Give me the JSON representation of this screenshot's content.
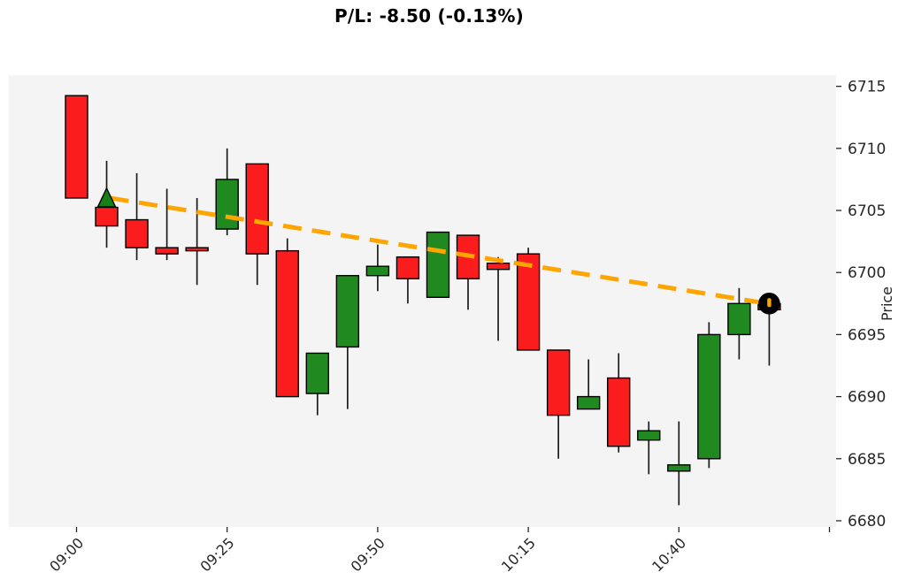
{
  "title": "P/L: -8.50 (-0.13%)",
  "chart_data": {
    "type": "candlestick",
    "title": "P/L: -8.50 (-0.13%)",
    "ylabel": "Price",
    "xlabel": "",
    "grid": false,
    "ylim": [
      6679.5,
      6715.9
    ],
    "y_ticks": [
      6680,
      6685,
      6690,
      6695,
      6700,
      6705,
      6710,
      6715
    ],
    "x_ticks": [
      {
        "index": 0,
        "label": "09:00"
      },
      {
        "index": 5,
        "label": "09:25"
      },
      {
        "index": 10,
        "label": "09:50"
      },
      {
        "index": 15,
        "label": "10:15"
      },
      {
        "index": 20,
        "label": "10:40"
      },
      {
        "index": 25,
        "label": ""
      }
    ],
    "columns": [
      "time",
      "open",
      "high",
      "low",
      "close"
    ],
    "candles": [
      [
        "09:00",
        6714.25,
        6714.25,
        6706.0,
        6706.0
      ],
      [
        "09:05",
        6705.25,
        6709.0,
        6702.0,
        6703.75
      ],
      [
        "09:10",
        6704.25,
        6708.0,
        6701.0,
        6702.0
      ],
      [
        "09:15",
        6702.0,
        6706.75,
        6701.0,
        6701.5
      ],
      [
        "09:20",
        6702.0,
        6706.0,
        6699.0,
        6701.75
      ],
      [
        "09:25",
        6703.5,
        6710.0,
        6703.0,
        6707.5
      ],
      [
        "09:30",
        6708.75,
        6708.75,
        6699.0,
        6701.5
      ],
      [
        "09:35",
        6701.75,
        6702.75,
        6690.0,
        6690.0
      ],
      [
        "09:40",
        6690.25,
        6693.5,
        6688.5,
        6693.5
      ],
      [
        "09:45",
        6694.0,
        6699.75,
        6689.0,
        6699.75
      ],
      [
        "09:50",
        6699.75,
        6702.25,
        6698.5,
        6700.5
      ],
      [
        "09:55",
        6701.25,
        6701.25,
        6697.5,
        6699.5
      ],
      [
        "10:00",
        6698.0,
        6703.25,
        6698.0,
        6703.25
      ],
      [
        "10:05",
        6703.0,
        6703.0,
        6697.0,
        6699.5
      ],
      [
        "10:10",
        6700.75,
        6701.25,
        6694.5,
        6700.25
      ],
      [
        "10:15",
        6701.5,
        6702.0,
        6693.75,
        6693.75
      ],
      [
        "10:20",
        6693.75,
        6693.75,
        6685.0,
        6688.5
      ],
      [
        "10:25",
        6689.0,
        6693.0,
        6689.0,
        6690.0
      ],
      [
        "10:30",
        6691.5,
        6693.5,
        6685.5,
        6686.0
      ],
      [
        "10:35",
        6686.5,
        6688.0,
        6683.75,
        6687.25
      ],
      [
        "10:40",
        6684.0,
        6688.0,
        6681.25,
        6684.5
      ],
      [
        "10:45",
        6685.0,
        6696.0,
        6684.25,
        6695.0
      ],
      [
        "10:50",
        6695.0,
        6698.75,
        6693.0,
        6697.5
      ],
      [
        "10:55",
        6697.5,
        6697.5,
        6692.5,
        6697.0
      ]
    ],
    "entry_marker": {
      "time": "09:05",
      "price": 6706.0,
      "type": "triangle-up",
      "color": "#168016"
    },
    "exit_marker": {
      "time": "10:55",
      "price": 6697.5,
      "type": "circle-dot",
      "color": "#000000",
      "dot_color": "#ffa500"
    },
    "trend_line": {
      "start_time": "09:05",
      "start_price": 6706.0,
      "end_time": "10:55",
      "end_price": 6697.5,
      "style": "dashed",
      "color": "#ffa500"
    },
    "colors": {
      "up": "#208a20",
      "down": "#fb1d1d",
      "edge": "#000000",
      "wick": "#1c1c1c",
      "trend": "#ffa500",
      "plot_bg": "#f4f4f4",
      "fig_bg": "#ffffff",
      "tick_text": "#262626"
    }
  }
}
